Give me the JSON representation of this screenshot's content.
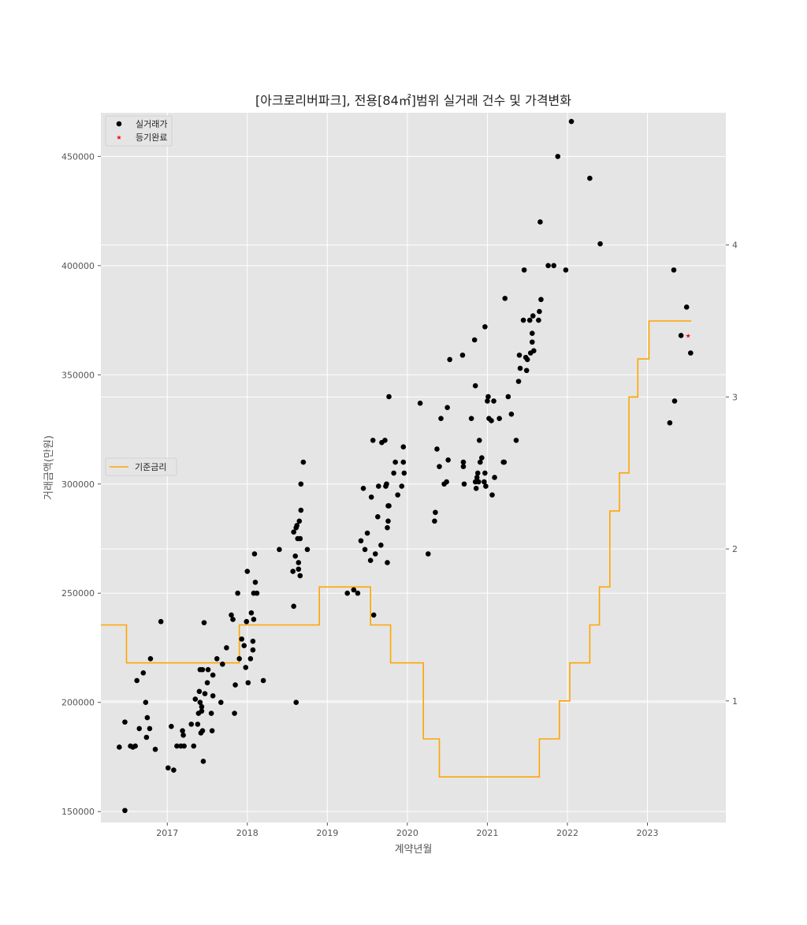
{
  "chart_data": {
    "type": "scatter",
    "title": "[아크로리버파크], 전용[84㎡]범위 실거래 건수 및 가격변화",
    "xlabel": "계약년월",
    "ylabel": "거래금액(만원)",
    "xlim": [
      2016.17,
      2023.98
    ],
    "ylim": [
      145000,
      470000
    ],
    "y2lim": [
      0.2,
      4.87
    ],
    "x_ticks": [
      2017,
      2018,
      2019,
      2020,
      2021,
      2022,
      2023
    ],
    "x_tick_labels": [
      "2017",
      "2018",
      "2019",
      "2020",
      "2021",
      "2022",
      "2023"
    ],
    "y_ticks": [
      150000,
      200000,
      250000,
      300000,
      350000,
      400000,
      450000
    ],
    "y_tick_labels": [
      "150000",
      "200000",
      "250000",
      "300000",
      "350000",
      "400000",
      "450000"
    ],
    "y2_ticks": [
      1,
      2,
      3,
      4
    ],
    "y2_tick_labels": [
      "1",
      "2",
      "3",
      "4"
    ],
    "grid": true,
    "legend_top": {
      "placement": "upper-left",
      "entries": [
        "실거래가",
        "등기완료"
      ]
    },
    "legend_mid": {
      "placement": "center-left",
      "entries": [
        "기준금리"
      ]
    },
    "colors": {
      "plot_bg": "#e5e5e5",
      "grid": "#ffffff",
      "scatter": "#000000",
      "registered": "#ff0000",
      "rate": "#ffa500"
    },
    "series": [
      {
        "name": "실거래가",
        "points": [
          [
            2016.4,
            179500
          ],
          [
            2016.47,
            150500
          ],
          [
            2016.47,
            191000
          ],
          [
            2016.54,
            180000
          ],
          [
            2016.57,
            179500
          ],
          [
            2016.6,
            180000
          ],
          [
            2016.62,
            210000
          ],
          [
            2016.65,
            188000
          ],
          [
            2016.7,
            213500
          ],
          [
            2016.73,
            200000
          ],
          [
            2016.74,
            184000
          ],
          [
            2016.75,
            193000
          ],
          [
            2016.78,
            188000
          ],
          [
            2016.79,
            220000
          ],
          [
            2016.85,
            178500
          ],
          [
            2016.92,
            237000
          ],
          [
            2017.01,
            170000
          ],
          [
            2017.05,
            189000
          ],
          [
            2017.08,
            169000
          ],
          [
            2017.12,
            180000
          ],
          [
            2017.17,
            180000
          ],
          [
            2017.19,
            187000
          ],
          [
            2017.2,
            185000
          ],
          [
            2017.21,
            180000
          ],
          [
            2017.3,
            190000
          ],
          [
            2017.33,
            180000
          ],
          [
            2017.35,
            201500
          ],
          [
            2017.38,
            190000
          ],
          [
            2017.39,
            195000
          ],
          [
            2017.4,
            205000
          ],
          [
            2017.41,
            215000
          ],
          [
            2017.41,
            200000
          ],
          [
            2017.42,
            186000
          ],
          [
            2017.43,
            198000
          ],
          [
            2017.43,
            196000
          ],
          [
            2017.44,
            215000
          ],
          [
            2017.44,
            187000
          ],
          [
            2017.45,
            173000
          ],
          [
            2017.46,
            236500
          ],
          [
            2017.47,
            204000
          ],
          [
            2017.5,
            209000
          ],
          [
            2017.51,
            215000
          ],
          [
            2017.55,
            195000
          ],
          [
            2017.56,
            187000
          ],
          [
            2017.57,
            203000
          ],
          [
            2017.57,
            212500
          ],
          [
            2017.62,
            220000
          ],
          [
            2017.67,
            200000
          ],
          [
            2017.69,
            217500
          ],
          [
            2017.74,
            225000
          ],
          [
            2017.8,
            240000
          ],
          [
            2017.82,
            238000
          ],
          [
            2017.84,
            195000
          ],
          [
            2017.85,
            208000
          ],
          [
            2017.88,
            250000
          ],
          [
            2017.9,
            220000
          ],
          [
            2017.93,
            229000
          ],
          [
            2017.96,
            226000
          ],
          [
            2017.98,
            216000
          ],
          [
            2017.99,
            237000
          ],
          [
            2018.0,
            260000
          ],
          [
            2018.01,
            209000
          ],
          [
            2018.04,
            220000
          ],
          [
            2018.05,
            241000
          ],
          [
            2018.07,
            228000
          ],
          [
            2018.07,
            224000
          ],
          [
            2018.08,
            238000
          ],
          [
            2018.08,
            250000
          ],
          [
            2018.09,
            268000
          ],
          [
            2018.1,
            255000
          ],
          [
            2018.12,
            250000
          ],
          [
            2018.2,
            210000
          ],
          [
            2018.4,
            270000
          ],
          [
            2018.57,
            260000
          ],
          [
            2018.58,
            278000
          ],
          [
            2018.58,
            244000
          ],
          [
            2018.6,
            267000
          ],
          [
            2018.61,
            200000
          ],
          [
            2018.61,
            280000
          ],
          [
            2018.62,
            281000
          ],
          [
            2018.63,
            275000
          ],
          [
            2018.64,
            261000
          ],
          [
            2018.64,
            264000
          ],
          [
            2018.65,
            283000
          ],
          [
            2018.66,
            258000
          ],
          [
            2018.66,
            275000
          ],
          [
            2018.67,
            300000
          ],
          [
            2018.67,
            288000
          ],
          [
            2018.7,
            310000
          ],
          [
            2018.75,
            270000
          ],
          [
            2019.25,
            250000
          ],
          [
            2019.33,
            251500
          ],
          [
            2019.38,
            250000
          ],
          [
            2019.42,
            274000
          ],
          [
            2019.45,
            298000
          ],
          [
            2019.47,
            270000
          ],
          [
            2019.5,
            277500
          ],
          [
            2019.54,
            265000
          ],
          [
            2019.55,
            294000
          ],
          [
            2019.57,
            320000
          ],
          [
            2019.58,
            240000
          ],
          [
            2019.6,
            268000
          ],
          [
            2019.63,
            285000
          ],
          [
            2019.64,
            299000
          ],
          [
            2019.67,
            272000
          ],
          [
            2019.68,
            319000
          ],
          [
            2019.72,
            320000
          ],
          [
            2019.73,
            299000
          ],
          [
            2019.74,
            300000
          ],
          [
            2019.75,
            264000
          ],
          [
            2019.75,
            280000
          ],
          [
            2019.76,
            283000
          ],
          [
            2019.76,
            290000
          ],
          [
            2019.77,
            290000
          ],
          [
            2019.77,
            340000
          ],
          [
            2019.83,
            305000
          ],
          [
            2019.85,
            310000
          ],
          [
            2019.88,
            295000
          ],
          [
            2019.93,
            299000
          ],
          [
            2019.95,
            317000
          ],
          [
            2019.95,
            310000
          ],
          [
            2019.96,
            305000
          ],
          [
            2020.16,
            337000
          ],
          [
            2020.26,
            268000
          ],
          [
            2020.34,
            283000
          ],
          [
            2020.35,
            287000
          ],
          [
            2020.37,
            316000
          ],
          [
            2020.4,
            308000
          ],
          [
            2020.42,
            330000
          ],
          [
            2020.46,
            300000
          ],
          [
            2020.49,
            301000
          ],
          [
            2020.5,
            335000
          ],
          [
            2020.51,
            311000
          ],
          [
            2020.53,
            357000
          ],
          [
            2020.69,
            359000
          ],
          [
            2020.7,
            310000
          ],
          [
            2020.7,
            308000
          ],
          [
            2020.71,
            300000
          ],
          [
            2020.8,
            330000
          ],
          [
            2020.84,
            366000
          ],
          [
            2020.85,
            301000
          ],
          [
            2020.85,
            345000
          ],
          [
            2020.86,
            298000
          ],
          [
            2020.87,
            303000
          ],
          [
            2020.88,
            305000
          ],
          [
            2020.89,
            301000
          ],
          [
            2020.9,
            320000
          ],
          [
            2020.91,
            310000
          ],
          [
            2020.93,
            312000
          ],
          [
            2020.96,
            301000
          ],
          [
            2020.97,
            305000
          ],
          [
            2020.97,
            372000
          ],
          [
            2020.98,
            299000
          ],
          [
            2021.0,
            338000
          ],
          [
            2021.01,
            340000
          ],
          [
            2021.02,
            330000
          ],
          [
            2021.05,
            329000
          ],
          [
            2021.06,
            295000
          ],
          [
            2021.08,
            338000
          ],
          [
            2021.09,
            303000
          ],
          [
            2021.15,
            330000
          ],
          [
            2021.2,
            310000
          ],
          [
            2021.21,
            310000
          ],
          [
            2021.22,
            385000
          ],
          [
            2021.26,
            340000
          ],
          [
            2021.3,
            332000
          ],
          [
            2021.36,
            320000
          ],
          [
            2021.39,
            347000
          ],
          [
            2021.4,
            359000
          ],
          [
            2021.41,
            353000
          ],
          [
            2021.45,
            375000
          ],
          [
            2021.46,
            398000
          ],
          [
            2021.48,
            358000
          ],
          [
            2021.49,
            352000
          ],
          [
            2021.5,
            357000
          ],
          [
            2021.53,
            375000
          ],
          [
            2021.54,
            360000
          ],
          [
            2021.56,
            365000
          ],
          [
            2021.56,
            369000
          ],
          [
            2021.57,
            377000
          ],
          [
            2021.58,
            361000
          ],
          [
            2021.64,
            375000
          ],
          [
            2021.65,
            379000
          ],
          [
            2021.66,
            420000
          ],
          [
            2021.67,
            384500
          ],
          [
            2021.76,
            400000
          ],
          [
            2021.83,
            400000
          ],
          [
            2021.88,
            450000
          ],
          [
            2021.98,
            398000
          ],
          [
            2022.05,
            466000
          ],
          [
            2022.28,
            440000
          ],
          [
            2022.41,
            410000
          ],
          [
            2023.28,
            328000
          ],
          [
            2023.33,
            398000
          ],
          [
            2023.34,
            338000
          ],
          [
            2023.42,
            368000
          ],
          [
            2023.49,
            381000
          ],
          [
            2023.54,
            360000
          ]
        ]
      },
      {
        "name": "등기완료",
        "points": [
          [
            2023.47,
            368000
          ]
        ]
      },
      {
        "name": "기준금리",
        "step_points": [
          [
            2016.17,
            1.5
          ],
          [
            2016.49,
            1.25
          ],
          [
            2017.9,
            1.5
          ],
          [
            2018.9,
            1.75
          ],
          [
            2019.54,
            1.5
          ],
          [
            2019.79,
            1.25
          ],
          [
            2020.2,
            0.75
          ],
          [
            2020.4,
            0.5
          ],
          [
            2021.65,
            0.75
          ],
          [
            2021.9,
            1.0
          ],
          [
            2022.03,
            1.25
          ],
          [
            2022.28,
            1.5
          ],
          [
            2022.4,
            1.75
          ],
          [
            2022.53,
            2.25
          ],
          [
            2022.65,
            2.5
          ],
          [
            2022.77,
            3.0
          ],
          [
            2022.88,
            3.25
          ],
          [
            2023.02,
            3.5
          ],
          [
            2023.55,
            3.5
          ]
        ]
      }
    ]
  }
}
